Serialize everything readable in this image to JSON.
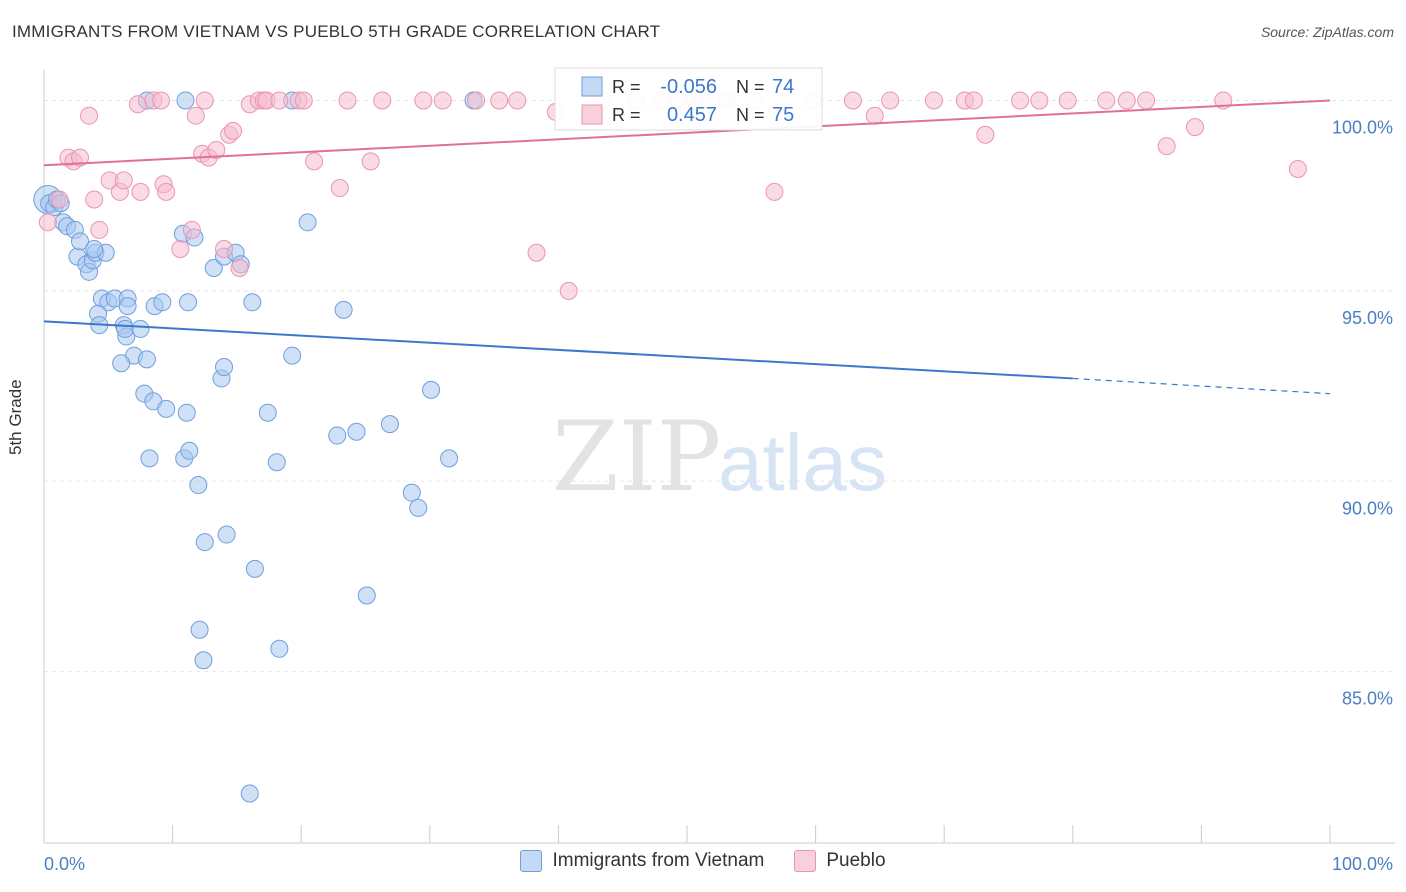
{
  "title": "IMMIGRANTS FROM VIETNAM VS PUEBLO 5TH GRADE CORRELATION CHART",
  "source": "Source: ZipAtlas.com",
  "watermark": {
    "zip": "ZIP",
    "atlas": "atlas"
  },
  "colors": {
    "blue_fill": "#a9c8f0",
    "blue_stroke": "#6f9fdc",
    "blue_line": "#3b78cc",
    "pink_fill": "#f5bcd0",
    "pink_stroke": "#e995b1",
    "pink_line": "#e0709a",
    "axis_label": "#4a7fc1",
    "grid": "#e6e6e6"
  },
  "stats": {
    "r_label": "R =",
    "n_label": "N =",
    "vietnam": {
      "r": "-0.056",
      "n": "74"
    },
    "pueblo": {
      "r": "0.457",
      "n": "75"
    }
  },
  "chart_data": {
    "type": "scatter",
    "title": "IMMIGRANTS FROM VIETNAM VS PUEBLO 5TH GRADE CORRELATION CHART",
    "xlabel": "",
    "ylabel": "5th Grade",
    "xlim": [
      0,
      100
    ],
    "ylim": [
      80.5,
      100.8
    ],
    "x_tick_labels": [
      {
        "value": 0,
        "label": "0.0%"
      },
      {
        "value": 100,
        "label": "100.0%"
      }
    ],
    "y_tick_labels": [
      {
        "value": 100,
        "label": "100.0%"
      },
      {
        "value": 95,
        "label": "95.0%"
      },
      {
        "value": 90,
        "label": "90.0%"
      },
      {
        "value": 85,
        "label": "85.0%"
      }
    ],
    "legend_position": "bottom",
    "series": [
      {
        "name": "Immigrants from Vietnam",
        "color": "#a9c8f0",
        "trend": {
          "x": [
            0,
            80,
            100
          ],
          "y": [
            94.2,
            92.7,
            92.3
          ],
          "solid_until": 80
        },
        "points": [
          [
            0.3,
            97.4
          ],
          [
            0.4,
            97.3
          ],
          [
            0.8,
            97.2
          ],
          [
            1.0,
            97.4
          ],
          [
            1.3,
            97.3
          ],
          [
            1.5,
            96.8
          ],
          [
            1.8,
            96.7
          ],
          [
            2.4,
            96.6
          ],
          [
            2.6,
            95.9
          ],
          [
            2.8,
            96.3
          ],
          [
            3.3,
            95.7
          ],
          [
            3.5,
            95.5
          ],
          [
            3.8,
            95.8
          ],
          [
            4.0,
            96.0
          ],
          [
            4.8,
            96.0
          ],
          [
            3.9,
            96.1
          ],
          [
            4.5,
            94.8
          ],
          [
            5.0,
            94.7
          ],
          [
            4.2,
            94.4
          ],
          [
            4.3,
            94.1
          ],
          [
            5.5,
            94.8
          ],
          [
            6.5,
            94.8
          ],
          [
            6.5,
            94.6
          ],
          [
            6.2,
            94.1
          ],
          [
            6.4,
            93.8
          ],
          [
            6.3,
            94.0
          ],
          [
            7.5,
            94.0
          ],
          [
            7.0,
            93.3
          ],
          [
            8.0,
            93.2
          ],
          [
            6.0,
            93.1
          ],
          [
            8.6,
            94.6
          ],
          [
            9.2,
            94.7
          ],
          [
            11.2,
            94.7
          ],
          [
            7.8,
            92.3
          ],
          [
            8.5,
            92.1
          ],
          [
            9.5,
            91.9
          ],
          [
            11.1,
            91.8
          ],
          [
            8.2,
            90.6
          ],
          [
            10.9,
            90.6
          ],
          [
            11.3,
            90.8
          ],
          [
            12.0,
            89.9
          ],
          [
            13.8,
            92.7
          ],
          [
            14.0,
            93.0
          ],
          [
            10.8,
            96.5
          ],
          [
            11.7,
            96.4
          ],
          [
            13.2,
            95.6
          ],
          [
            14.0,
            95.9
          ],
          [
            14.9,
            96.0
          ],
          [
            15.3,
            95.7
          ],
          [
            16.2,
            94.7
          ],
          [
            12.5,
            88.4
          ],
          [
            14.2,
            88.6
          ],
          [
            16.4,
            87.7
          ],
          [
            16.0,
            81.8
          ],
          [
            12.1,
            86.1
          ],
          [
            12.4,
            85.3
          ],
          [
            18.3,
            85.6
          ],
          [
            17.4,
            91.8
          ],
          [
            18.1,
            90.5
          ],
          [
            19.3,
            93.3
          ],
          [
            20.5,
            96.8
          ],
          [
            22.8,
            91.2
          ],
          [
            23.3,
            94.5
          ],
          [
            24.3,
            91.3
          ],
          [
            25.1,
            87.0
          ],
          [
            26.9,
            91.5
          ],
          [
            28.6,
            89.7
          ],
          [
            29.1,
            89.3
          ],
          [
            30.1,
            92.4
          ],
          [
            31.5,
            90.6
          ],
          [
            8.0,
            100.0
          ],
          [
            11.0,
            100.0
          ],
          [
            19.3,
            100.0
          ],
          [
            33.4,
            100.0
          ]
        ]
      },
      {
        "name": "Pueblo",
        "color": "#f5bcd0",
        "trend": {
          "x": [
            0,
            100
          ],
          "y": [
            98.3,
            100.0
          ]
        },
        "points": [
          [
            0.3,
            96.8
          ],
          [
            1.2,
            97.4
          ],
          [
            1.9,
            98.5
          ],
          [
            2.3,
            98.4
          ],
          [
            2.8,
            98.5
          ],
          [
            3.5,
            99.6
          ],
          [
            3.9,
            97.4
          ],
          [
            4.3,
            96.6
          ],
          [
            5.1,
            97.9
          ],
          [
            5.9,
            97.6
          ],
          [
            6.2,
            97.9
          ],
          [
            7.3,
            99.9
          ],
          [
            7.5,
            97.6
          ],
          [
            8.5,
            100.0
          ],
          [
            9.1,
            100.0
          ],
          [
            9.3,
            97.8
          ],
          [
            9.5,
            97.6
          ],
          [
            10.6,
            96.1
          ],
          [
            11.5,
            96.6
          ],
          [
            11.8,
            99.6
          ],
          [
            12.3,
            98.6
          ],
          [
            12.5,
            100.0
          ],
          [
            12.8,
            98.5
          ],
          [
            13.4,
            98.7
          ],
          [
            14.0,
            96.1
          ],
          [
            14.4,
            99.1
          ],
          [
            14.7,
            99.2
          ],
          [
            15.2,
            95.6
          ],
          [
            16.0,
            99.9
          ],
          [
            16.7,
            100.0
          ],
          [
            17.1,
            100.0
          ],
          [
            17.3,
            100.0
          ],
          [
            18.3,
            100.0
          ],
          [
            19.8,
            100.0
          ],
          [
            20.2,
            100.0
          ],
          [
            21.0,
            98.4
          ],
          [
            23.0,
            97.7
          ],
          [
            23.6,
            100.0
          ],
          [
            25.4,
            98.4
          ],
          [
            26.3,
            100.0
          ],
          [
            29.5,
            100.0
          ],
          [
            31.0,
            100.0
          ],
          [
            33.6,
            100.0
          ],
          [
            35.4,
            100.0
          ],
          [
            36.8,
            100.0
          ],
          [
            38.3,
            96.0
          ],
          [
            39.8,
            99.7
          ],
          [
            40.8,
            95.0
          ],
          [
            43.4,
            100.0
          ],
          [
            46.0,
            100.0
          ],
          [
            48.0,
            100.0
          ],
          [
            49.4,
            100.0
          ],
          [
            50.6,
            100.0
          ],
          [
            51.2,
            100.0
          ],
          [
            53.1,
            100.0
          ],
          [
            55.2,
            100.0
          ],
          [
            56.8,
            97.6
          ],
          [
            59.8,
            100.0
          ],
          [
            62.9,
            100.0
          ],
          [
            64.6,
            99.6
          ],
          [
            65.8,
            100.0
          ],
          [
            69.2,
            100.0
          ],
          [
            71.6,
            100.0
          ],
          [
            72.3,
            100.0
          ],
          [
            73.2,
            99.1
          ],
          [
            75.9,
            100.0
          ],
          [
            77.4,
            100.0
          ],
          [
            79.6,
            100.0
          ],
          [
            82.6,
            100.0
          ],
          [
            84.2,
            100.0
          ],
          [
            85.7,
            100.0
          ],
          [
            87.3,
            98.8
          ],
          [
            89.5,
            99.3
          ],
          [
            91.7,
            100.0
          ],
          [
            97.5,
            98.2
          ]
        ]
      }
    ]
  },
  "legend": {
    "vietnam_label": "Immigrants from Vietnam",
    "pueblo_label": "Pueblo"
  }
}
